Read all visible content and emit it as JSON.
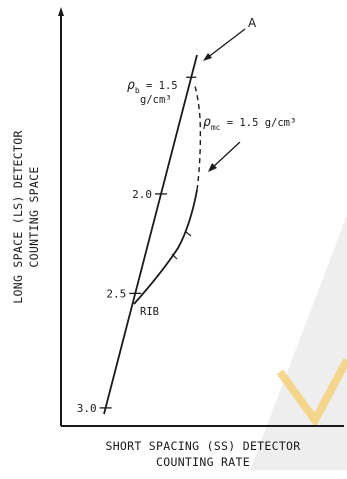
{
  "chart_data": {
    "type": "line",
    "xlabel_lines": [
      "SHORT SPACING (SS) DETECTOR",
      "COUNTING RATE"
    ],
    "ylabel_lines": [
      "LONG SPACE (LS) DETECTOR",
      "COUNTING SPACE"
    ],
    "density_ticks": [
      {
        "label": "2.0",
        "t": 0.387
      },
      {
        "label": "2.5",
        "t": 0.664
      },
      {
        "label": "3.0",
        "t": 0.983
      }
    ],
    "top_density_label": {
      "rho": "ρ",
      "sub": "b",
      "rest": " = 1.5",
      "units": "g/cm³",
      "t": 0.062
    },
    "mudcake_label": {
      "rho": "ρ",
      "sub": "mc",
      "rest": " = 1.5 g/cm³"
    },
    "rib_label": "RIB",
    "point_label": "A",
    "palette": {
      "ink": "#1a1a1a",
      "watermark_grey": "#e6e6e6",
      "watermark_orange": "#f3c766"
    }
  }
}
